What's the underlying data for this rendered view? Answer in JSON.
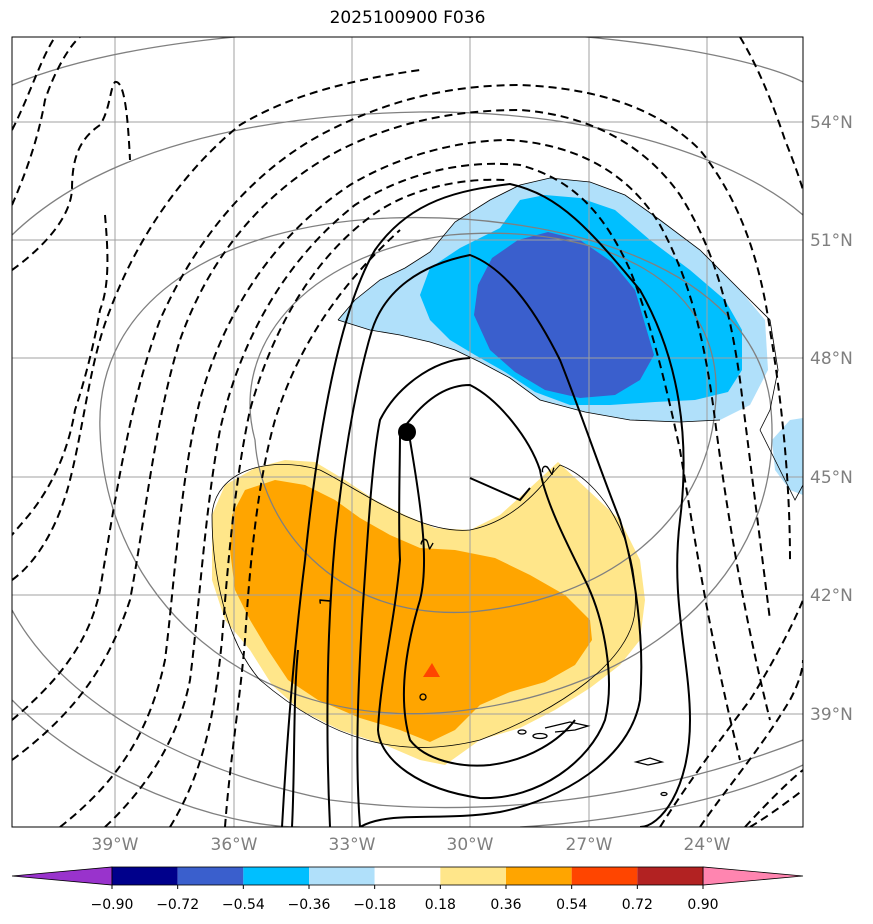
{
  "title": "2025100900 F036",
  "lat_labels": [
    "54°N",
    "51°N",
    "48°N",
    "45°N",
    "42°N",
    "39°N"
  ],
  "lon_labels": [
    "39°W",
    "36°W",
    "33°W",
    "30°W",
    "27°W",
    "24°W"
  ],
  "contour_labels": [
    "1",
    "2",
    "2"
  ],
  "colorbar": {
    "labels": [
      "−0.90",
      "−0.72",
      "−0.54",
      "−0.36",
      "−0.18",
      "0.18",
      "0.36",
      "0.54",
      "0.72",
      "0.90"
    ],
    "colors": [
      "#9933cc",
      "#00008b",
      "#3a5fcd",
      "#00bfff",
      "#b0e0fa",
      "#ffffff",
      "#ffe68a",
      "#ffa500",
      "#ff4500",
      "#b22222",
      "#ff85b0"
    ]
  },
  "colors": {
    "neg_weak": "#b0e0fa",
    "neg_mid": "#00bfff",
    "neg_strong": "#3a5fcd",
    "pos_weak": "#ffe68a",
    "pos_mid": "#ffa500",
    "pos_strong": "#ff4500",
    "grid": "#a0a0a0",
    "coast": "#808080"
  }
}
